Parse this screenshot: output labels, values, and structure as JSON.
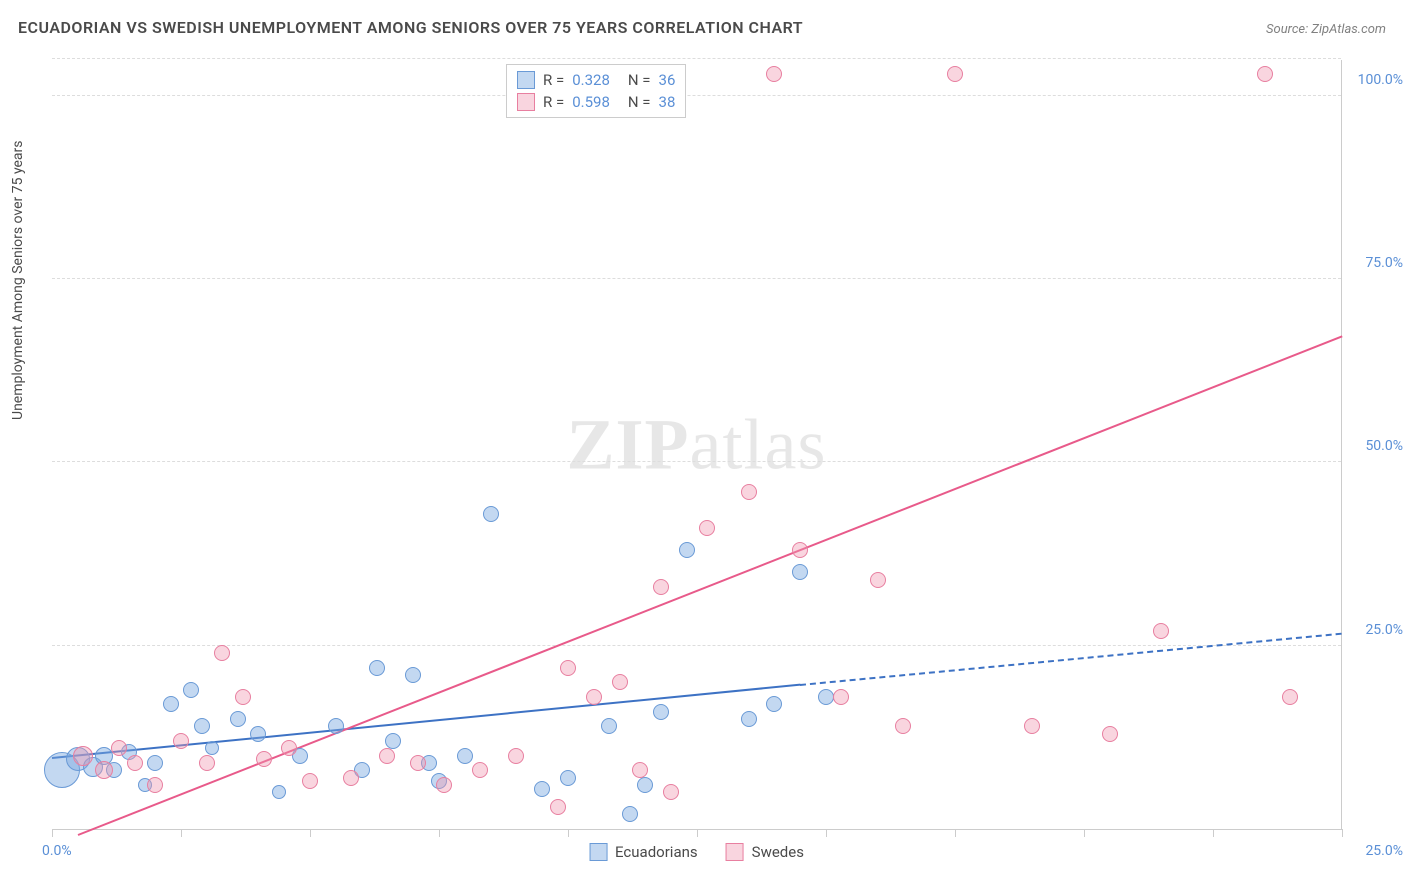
{
  "title": "ECUADORIAN VS SWEDISH UNEMPLOYMENT AMONG SENIORS OVER 75 YEARS CORRELATION CHART",
  "source": "Source: ZipAtlas.com",
  "ylabel": "Unemployment Among Seniors over 75 years",
  "watermark_bold": "ZIP",
  "watermark_light": "atlas",
  "chart": {
    "type": "scatter",
    "xlim": [
      0,
      25
    ],
    "ylim": [
      0,
      105
    ],
    "x_ticks_label": {
      "min": "0.0%",
      "max": "25.0%"
    },
    "x_tick_positions": [
      0,
      2.5,
      5,
      7.5,
      10,
      12.5,
      15,
      17.5,
      20,
      22.5,
      25
    ],
    "y_gridlines": [
      25,
      50,
      75,
      100,
      105
    ],
    "y_tick_labels": {
      "25": "25.0%",
      "50": "50.0%",
      "75": "75.0%",
      "100": "100.0%"
    },
    "background_color": "#ffffff",
    "grid_color": "#dddddd",
    "axis_color": "#cccccc",
    "tick_label_color": "#5a8fd6",
    "series": [
      {
        "name": "Ecuadorians",
        "fill": "rgba(122,168,224,0.45)",
        "stroke": "#6a9ad6",
        "R": "0.328",
        "N": "36",
        "trendline": {
          "x1": 0,
          "y1": 9.5,
          "x2": 14.5,
          "y2": 19.5,
          "dash_to_x": 25,
          "dash_to_y": 26.5,
          "color": "#3d72c4"
        },
        "points": [
          {
            "x": 0.2,
            "y": 8,
            "r": 18
          },
          {
            "x": 0.5,
            "y": 9.5,
            "r": 12
          },
          {
            "x": 0.8,
            "y": 8.5,
            "r": 10
          },
          {
            "x": 1.0,
            "y": 10,
            "r": 9
          },
          {
            "x": 1.2,
            "y": 8,
            "r": 8
          },
          {
            "x": 1.5,
            "y": 10.5,
            "r": 8
          },
          {
            "x": 1.8,
            "y": 6,
            "r": 7
          },
          {
            "x": 2.0,
            "y": 9,
            "r": 8
          },
          {
            "x": 2.3,
            "y": 17,
            "r": 8
          },
          {
            "x": 2.7,
            "y": 19,
            "r": 8
          },
          {
            "x": 2.9,
            "y": 14,
            "r": 8
          },
          {
            "x": 3.1,
            "y": 11,
            "r": 7
          },
          {
            "x": 3.6,
            "y": 15,
            "r": 8
          },
          {
            "x": 4.0,
            "y": 13,
            "r": 8
          },
          {
            "x": 4.4,
            "y": 5,
            "r": 7
          },
          {
            "x": 4.8,
            "y": 10,
            "r": 8
          },
          {
            "x": 5.5,
            "y": 14,
            "r": 8
          },
          {
            "x": 6.0,
            "y": 8,
            "r": 8
          },
          {
            "x": 6.3,
            "y": 22,
            "r": 8
          },
          {
            "x": 6.6,
            "y": 12,
            "r": 8
          },
          {
            "x": 7.0,
            "y": 21,
            "r": 8
          },
          {
            "x": 7.3,
            "y": 9,
            "r": 8
          },
          {
            "x": 7.5,
            "y": 6.5,
            "r": 8
          },
          {
            "x": 8.0,
            "y": 10,
            "r": 8
          },
          {
            "x": 8.5,
            "y": 43,
            "r": 8
          },
          {
            "x": 9.5,
            "y": 5.5,
            "r": 8
          },
          {
            "x": 10.0,
            "y": 7,
            "r": 8
          },
          {
            "x": 10.8,
            "y": 14,
            "r": 8
          },
          {
            "x": 11.2,
            "y": 2,
            "r": 8
          },
          {
            "x": 11.5,
            "y": 6,
            "r": 8
          },
          {
            "x": 11.8,
            "y": 16,
            "r": 8
          },
          {
            "x": 12.3,
            "y": 38,
            "r": 8
          },
          {
            "x": 13.5,
            "y": 15,
            "r": 8
          },
          {
            "x": 14.0,
            "y": 17,
            "r": 8
          },
          {
            "x": 14.5,
            "y": 35,
            "r": 8
          },
          {
            "x": 15.0,
            "y": 18,
            "r": 8
          }
        ]
      },
      {
        "name": "Swedes",
        "fill": "rgba(240,150,175,0.4)",
        "stroke": "#e87fa0",
        "R": "0.598",
        "N": "38",
        "trendline": {
          "x1": 0.5,
          "y1": -1,
          "x2": 25,
          "y2": 67,
          "color": "#e85a8a"
        },
        "points": [
          {
            "x": 0.6,
            "y": 10,
            "r": 10
          },
          {
            "x": 1.0,
            "y": 8,
            "r": 9
          },
          {
            "x": 1.3,
            "y": 11,
            "r": 8
          },
          {
            "x": 1.6,
            "y": 9,
            "r": 8
          },
          {
            "x": 2.0,
            "y": 6,
            "r": 8
          },
          {
            "x": 2.5,
            "y": 12,
            "r": 8
          },
          {
            "x": 3.0,
            "y": 9,
            "r": 8
          },
          {
            "x": 3.3,
            "y": 24,
            "r": 8
          },
          {
            "x": 3.7,
            "y": 18,
            "r": 8
          },
          {
            "x": 4.1,
            "y": 9.5,
            "r": 8
          },
          {
            "x": 4.6,
            "y": 11,
            "r": 8
          },
          {
            "x": 5.0,
            "y": 6.5,
            "r": 8
          },
          {
            "x": 5.8,
            "y": 7,
            "r": 8
          },
          {
            "x": 6.5,
            "y": 10,
            "r": 8
          },
          {
            "x": 7.1,
            "y": 9,
            "r": 8
          },
          {
            "x": 7.6,
            "y": 6,
            "r": 8
          },
          {
            "x": 8.3,
            "y": 8,
            "r": 8
          },
          {
            "x": 9.0,
            "y": 10,
            "r": 8
          },
          {
            "x": 9.8,
            "y": 3,
            "r": 8
          },
          {
            "x": 10.0,
            "y": 22,
            "r": 8
          },
          {
            "x": 10.5,
            "y": 18,
            "r": 8
          },
          {
            "x": 11.0,
            "y": 20,
            "r": 8
          },
          {
            "x": 11.4,
            "y": 8,
            "r": 8
          },
          {
            "x": 11.8,
            "y": 33,
            "r": 8
          },
          {
            "x": 12.0,
            "y": 5,
            "r": 8
          },
          {
            "x": 12.7,
            "y": 41,
            "r": 8
          },
          {
            "x": 13.5,
            "y": 46,
            "r": 8
          },
          {
            "x": 14.0,
            "y": 103,
            "r": 8
          },
          {
            "x": 14.5,
            "y": 38,
            "r": 8
          },
          {
            "x": 15.3,
            "y": 18,
            "r": 8
          },
          {
            "x": 16.0,
            "y": 34,
            "r": 8
          },
          {
            "x": 16.5,
            "y": 14,
            "r": 8
          },
          {
            "x": 17.5,
            "y": 103,
            "r": 8
          },
          {
            "x": 19.0,
            "y": 14,
            "r": 8
          },
          {
            "x": 20.5,
            "y": 13,
            "r": 8
          },
          {
            "x": 21.5,
            "y": 27,
            "r": 8
          },
          {
            "x": 23.5,
            "y": 103,
            "r": 8
          },
          {
            "x": 24.0,
            "y": 18,
            "r": 8
          }
        ]
      }
    ],
    "legend_bottom": [
      {
        "label": "Ecuadorians",
        "fill": "rgba(122,168,224,0.45)",
        "stroke": "#6a9ad6"
      },
      {
        "label": "Swedes",
        "fill": "rgba(240,150,175,0.4)",
        "stroke": "#e87fa0"
      }
    ]
  }
}
